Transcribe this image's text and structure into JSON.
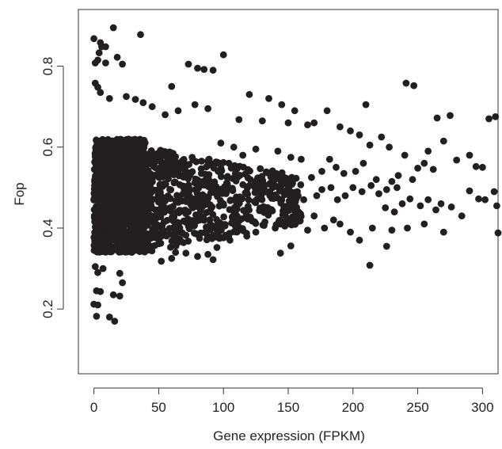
{
  "chart_data": {
    "type": "scatter",
    "title": "",
    "xlabel": "Gene expression (FPKM)",
    "ylabel": "Fop",
    "xlim": [
      -12,
      312
    ],
    "ylim": [
      0.04,
      0.94
    ],
    "xticks": [
      0,
      50,
      100,
      150,
      200,
      250,
      300
    ],
    "yticks": [
      0.2,
      0.4,
      0.6,
      0.8
    ],
    "grid": false,
    "legend": "none",
    "point_color": "#231f20",
    "dense_region": {
      "x_range": [
        0,
        40
      ],
      "y_range": [
        0.34,
        0.62
      ],
      "tapered_x_range": [
        40,
        160
      ],
      "tapered_y_center": 0.47,
      "description_for_generation": "Thousands of overlapping points at low expression; bounds in data units."
    },
    "series": [
      {
        "points": [
          [
            15,
            0.895
          ],
          [
            36,
            0.878
          ],
          [
            0,
            0.868
          ],
          [
            5,
            0.858
          ],
          [
            6,
            0.848
          ],
          [
            9,
            0.848
          ],
          [
            4,
            0.833
          ],
          [
            18,
            0.822
          ],
          [
            3,
            0.815
          ],
          [
            1,
            0.808
          ],
          [
            9,
            0.808
          ],
          [
            22,
            0.805
          ],
          [
            100,
            0.828
          ],
          [
            73,
            0.805
          ],
          [
            80,
            0.795
          ],
          [
            85,
            0.792
          ],
          [
            92,
            0.79
          ],
          [
            60,
            0.75
          ],
          [
            1,
            0.758
          ],
          [
            3,
            0.748
          ],
          [
            5,
            0.735
          ],
          [
            12,
            0.72
          ],
          [
            25,
            0.725
          ],
          [
            32,
            0.718
          ],
          [
            38,
            0.71
          ],
          [
            45,
            0.7
          ],
          [
            55,
            0.68
          ],
          [
            65,
            0.69
          ],
          [
            78,
            0.705
          ],
          [
            88,
            0.695
          ],
          [
            120,
            0.73
          ],
          [
            135,
            0.72
          ],
          [
            130,
            0.665
          ],
          [
            112,
            0.668
          ],
          [
            145,
            0.705
          ],
          [
            150,
            0.66
          ],
          [
            155,
            0.69
          ],
          [
            165,
            0.655
          ],
          [
            170,
            0.66
          ],
          [
            180,
            0.69
          ],
          [
            190,
            0.65
          ],
          [
            198,
            0.64
          ],
          [
            210,
            0.705
          ],
          [
            205,
            0.63
          ],
          [
            213,
            0.605
          ],
          [
            222,
            0.625
          ],
          [
            228,
            0.6
          ],
          [
            240,
            0.58
          ],
          [
            241,
            0.758
          ],
          [
            247,
            0.752
          ],
          [
            250,
            0.548
          ],
          [
            255,
            0.56
          ],
          [
            265,
            0.672
          ],
          [
            270,
            0.615
          ],
          [
            275,
            0.678
          ],
          [
            280,
            0.568
          ],
          [
            290,
            0.58
          ],
          [
            295,
            0.552
          ],
          [
            300,
            0.55
          ],
          [
            305,
            0.67
          ],
          [
            310,
            0.675
          ],
          [
            258,
            0.59
          ],
          [
            262,
            0.545
          ],
          [
            235,
            0.53
          ],
          [
            230,
            0.515
          ],
          [
            218,
            0.52
          ],
          [
            208,
            0.56
          ],
          [
            202,
            0.54
          ],
          [
            193,
            0.535
          ],
          [
            187,
            0.55
          ],
          [
            182,
            0.57
          ],
          [
            176,
            0.54
          ],
          [
            168,
            0.525
          ],
          [
            160,
            0.57
          ],
          [
            152,
            0.575
          ],
          [
            142,
            0.59
          ],
          [
            125,
            0.595
          ],
          [
            115,
            0.58
          ],
          [
            108,
            0.6
          ],
          [
            98,
            0.61
          ],
          [
            225,
            0.45
          ],
          [
            232,
            0.44
          ],
          [
            238,
            0.46
          ],
          [
            244,
            0.472
          ],
          [
            252,
            0.455
          ],
          [
            258,
            0.47
          ],
          [
            264,
            0.445
          ],
          [
            268,
            0.46
          ],
          [
            276,
            0.452
          ],
          [
            284,
            0.43
          ],
          [
            290,
            0.492
          ],
          [
            297,
            0.472
          ],
          [
            302,
            0.47
          ],
          [
            309,
            0.49
          ],
          [
            311,
            0.455
          ],
          [
            312,
            0.388
          ],
          [
            270,
            0.39
          ],
          [
            255,
            0.41
          ],
          [
            242,
            0.4
          ],
          [
            230,
            0.395
          ],
          [
            215,
            0.4
          ],
          [
            213,
            0.308
          ],
          [
            226,
            0.355
          ],
          [
            205,
            0.37
          ],
          [
            198,
            0.39
          ],
          [
            190,
            0.41
          ],
          [
            185,
            0.42
          ],
          [
            178,
            0.4
          ],
          [
            170,
            0.43
          ],
          [
            165,
            0.395
          ],
          [
            158,
            0.44
          ],
          [
            148,
            0.43
          ],
          [
            140,
            0.4
          ],
          [
            132,
            0.415
          ],
          [
            125,
            0.39
          ],
          [
            118,
            0.38
          ],
          [
            105,
            0.37
          ],
          [
            95,
            0.352
          ],
          [
            88,
            0.335
          ],
          [
            80,
            0.33
          ],
          [
            71,
            0.338
          ],
          [
            63,
            0.34
          ],
          [
            60,
            0.325
          ],
          [
            52,
            0.318
          ],
          [
            92,
            0.322
          ],
          [
            144,
            0.338
          ],
          [
            152,
            0.356
          ],
          [
            7,
            0.3
          ],
          [
            1,
            0.305
          ],
          [
            3,
            0.29
          ],
          [
            20,
            0.288
          ],
          [
            22,
            0.265
          ],
          [
            2,
            0.245
          ],
          [
            5,
            0.243
          ],
          [
            15,
            0.235
          ],
          [
            20,
            0.232
          ],
          [
            0,
            0.212
          ],
          [
            3,
            0.21
          ],
          [
            12,
            0.18
          ],
          [
            2,
            0.182
          ],
          [
            16,
            0.17
          ],
          [
            183,
            0.5
          ],
          [
            188,
            0.47
          ],
          [
            194,
            0.48
          ],
          [
            200,
            0.5
          ],
          [
            207,
            0.49
          ],
          [
            214,
            0.505
          ],
          [
            220,
            0.485
          ],
          [
            226,
            0.495
          ],
          [
            234,
            0.5
          ],
          [
            246,
            0.52
          ],
          [
            172,
            0.48
          ],
          [
            176,
            0.495
          ],
          [
            162,
            0.47
          ],
          [
            157,
            0.49
          ],
          [
            145,
            0.47
          ],
          [
            138,
            0.5
          ],
          [
            128,
            0.485
          ],
          [
            120,
            0.505
          ]
        ]
      }
    ]
  }
}
